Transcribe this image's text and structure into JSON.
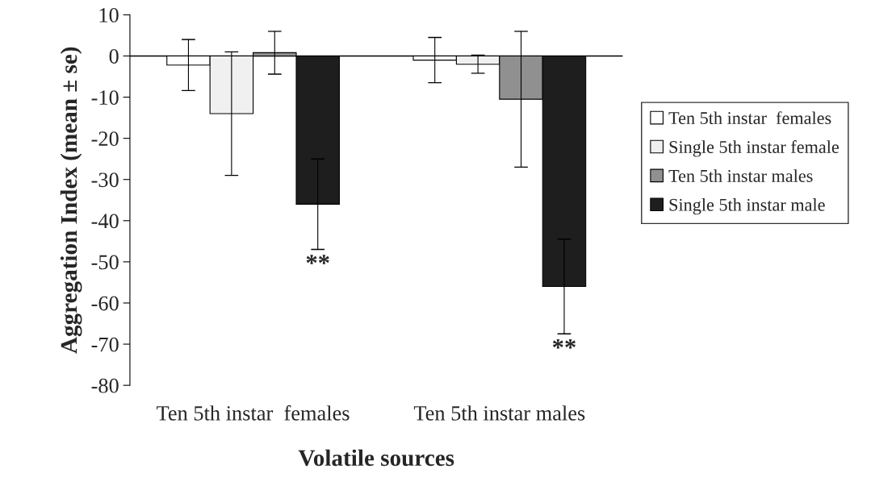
{
  "chart_data": {
    "type": "bar",
    "xlabel": "Volatile sources",
    "ylabel": "Aggregation Index (mean ± se)",
    "categories": [
      "Ten 5th instar  females",
      "Ten 5th instar males"
    ],
    "series": [
      {
        "name": "Ten 5th instar  females",
        "color": "#ffffff",
        "values": [
          -2.2,
          -1
        ],
        "errors": [
          6.2,
          5.5
        ]
      },
      {
        "name": "Single 5th instar female",
        "color": "#f0f0f0",
        "values": [
          -14,
          -2
        ],
        "errors": [
          15,
          2.2
        ]
      },
      {
        "name": "Ten 5th instar males",
        "color": "#909090",
        "values": [
          0.8,
          -10.5
        ],
        "errors": [
          5.2,
          16.5
        ]
      },
      {
        "name": "Single 5th instar male",
        "color": "#1e1e1e",
        "values": [
          -36,
          -56
        ],
        "errors": [
          11,
          11.5
        ]
      }
    ],
    "annotations": [
      "**",
      "**"
    ],
    "ref_lines": [
      {
        "axis": "y",
        "value": 0,
        "color": "#000000"
      }
    ],
    "ylim": [
      -80,
      10
    ],
    "yticks": [
      -80,
      -70,
      -60,
      -50,
      -40,
      -30,
      -20,
      -10,
      0,
      10
    ],
    "legend": "right"
  }
}
